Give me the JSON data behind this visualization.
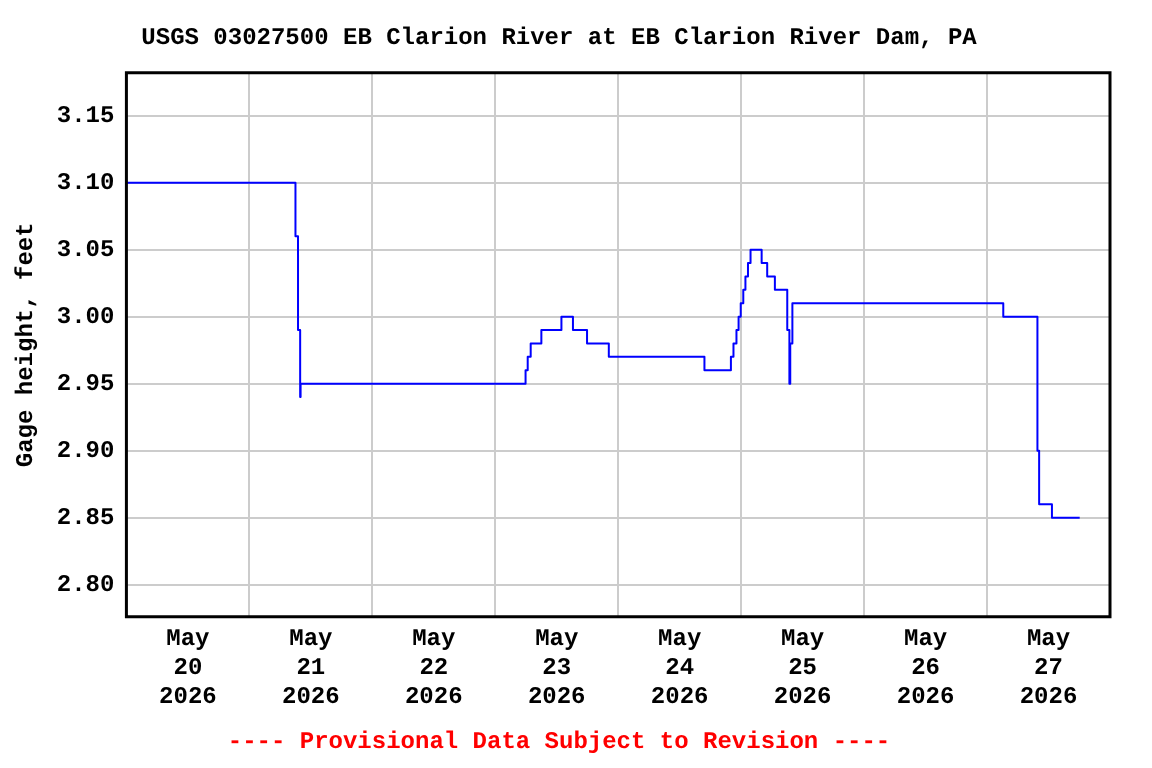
{
  "chart_data": {
    "type": "step",
    "title": "USGS 03027500 EB Clarion River at EB Clarion River Dam, PA",
    "ylabel": "Gage height, feet",
    "annotations": [
      "---- Provisional Data Subject to Revision ----"
    ],
    "x": [
      "2026-05-20T00:00",
      "2026-05-21T09:00",
      "2026-05-21T09:30",
      "2026-05-21T09:55",
      "2026-05-21T10:00",
      "2026-05-23T05:55",
      "2026-05-23T06:20",
      "2026-05-23T06:55",
      "2026-05-23T09:00",
      "2026-05-23T12:55",
      "2026-05-23T15:10",
      "2026-05-23T17:55",
      "2026-05-23T22:10",
      "2026-05-24T16:50",
      "2026-05-24T22:00",
      "2026-05-24T22:30",
      "2026-05-24T23:05",
      "2026-05-24T23:30",
      "2026-05-24T23:55",
      "2026-05-25T00:25",
      "2026-05-25T00:50",
      "2026-05-25T01:20",
      "2026-05-25T01:50",
      "2026-05-25T04:00",
      "2026-05-25T05:05",
      "2026-05-25T06:35",
      "2026-05-25T09:00",
      "2026-05-25T09:25",
      "2026-05-25T09:35",
      "2026-05-25T10:00",
      "2026-05-27T03:10",
      "2026-05-27T09:50",
      "2026-05-27T10:10",
      "2026-05-27T12:40",
      "2026-05-27T18:05"
    ],
    "series": [
      {
        "color": "#0000ff",
        "values": [
          3.1,
          3.06,
          2.99,
          2.94,
          2.95,
          2.96,
          2.97,
          2.98,
          2.99,
          3.0,
          2.99,
          2.98,
          2.97,
          2.96,
          2.97,
          2.98,
          2.99,
          3.0,
          3.01,
          3.02,
          3.03,
          3.04,
          3.05,
          3.04,
          3.03,
          3.02,
          2.99,
          2.95,
          2.98,
          3.01,
          3.0,
          2.9,
          2.86,
          2.85,
          2.85
        ]
      }
    ],
    "xlim": [
      "2026-05-20T00:00",
      "2026-05-28T00:00"
    ],
    "xticks": [
      {
        "value": "2026-05-20T12:00",
        "label": "May 20 2026"
      },
      {
        "value": "2026-05-21T00:00",
        "label": null
      },
      {
        "value": "2026-05-21T12:00",
        "label": "May 21 2026"
      },
      {
        "value": "2026-05-22T00:00",
        "label": null
      },
      {
        "value": "2026-05-22T12:00",
        "label": "May 22 2026"
      },
      {
        "value": "2026-05-23T00:00",
        "label": null
      },
      {
        "value": "2026-05-23T12:00",
        "label": "May 23 2026"
      },
      {
        "value": "2026-05-24T00:00",
        "label": null
      },
      {
        "value": "2026-05-24T12:00",
        "label": "May 24 2026"
      },
      {
        "value": "2026-05-25T00:00",
        "label": null
      },
      {
        "value": "2026-05-25T12:00",
        "label": "May 25 2026"
      },
      {
        "value": "2026-05-26T00:00",
        "label": null
      },
      {
        "value": "2026-05-26T12:00",
        "label": "May 26 2026"
      },
      {
        "value": "2026-05-27T00:00",
        "label": null
      },
      {
        "value": "2026-05-27T12:00",
        "label": "May 27 2026"
      }
    ],
    "ylim": [
      2.776,
      3.182
    ],
    "yticks": [
      {
        "value": 2.8,
        "label": "2.80"
      },
      {
        "value": 2.85,
        "label": "2.85"
      },
      {
        "value": 2.9,
        "label": "2.90"
      },
      {
        "value": 2.95,
        "label": "2.95"
      },
      {
        "value": 3.0,
        "label": "3.00"
      },
      {
        "value": 3.05,
        "label": "3.05"
      },
      {
        "value": 3.1,
        "label": "3.10"
      },
      {
        "value": 3.15,
        "label": "3.15"
      }
    ],
    "grid": true,
    "legend": false,
    "marker": "none"
  }
}
